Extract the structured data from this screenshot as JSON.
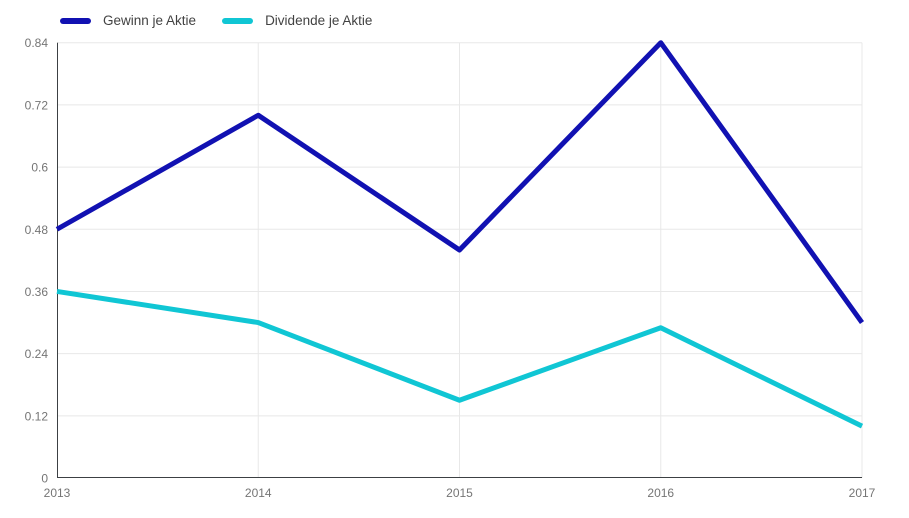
{
  "chart_data": {
    "type": "line",
    "categories": [
      "2013",
      "2014",
      "2015",
      "2016",
      "2017"
    ],
    "series": [
      {
        "name": "Gewinn je Aktie",
        "color": "#1111b2",
        "values": [
          0.48,
          0.7,
          0.44,
          0.84,
          0.3
        ]
      },
      {
        "name": "Dividende je Aktie",
        "color": "#10c6d4",
        "values": [
          0.36,
          0.3,
          0.15,
          0.29,
          0.1
        ]
      }
    ],
    "title": "",
    "xlabel": "",
    "ylabel": "",
    "ylim": [
      0,
      0.84
    ],
    "yticks": [
      0,
      0.12,
      0.24,
      0.36,
      0.48,
      0.6,
      0.72,
      0.84
    ],
    "ytick_labels": [
      "0",
      "0.12",
      "0.24",
      "0.36",
      "0.48",
      "0.6",
      "0.72",
      "0.84"
    ],
    "grid": true,
    "legend_position": "top-left"
  },
  "colors": {
    "background": "#ffffff",
    "gridline": "#e8e8e8",
    "axis_line": "#3c4043",
    "tick_label": "#757575",
    "legend_label": "#424242"
  }
}
